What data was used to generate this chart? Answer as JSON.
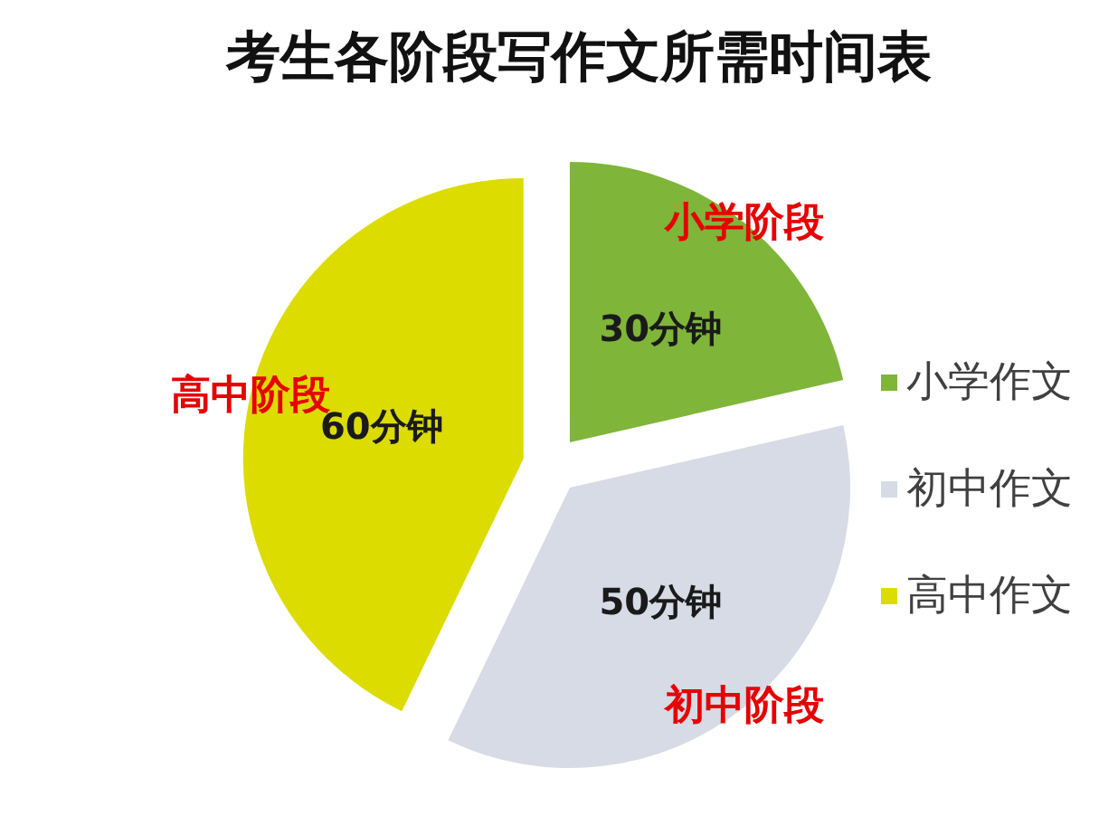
{
  "chart_data": {
    "type": "pie",
    "title": "考生各阶段写作文所需时间表",
    "categories": [
      "小学作文",
      "初中作文",
      "高中作文"
    ],
    "values": [
      30,
      50,
      60
    ],
    "colors": [
      "#7fb539",
      "#d6dbe5",
      "#dcdc00"
    ],
    "value_labels": [
      "30分钟",
      "50分钟",
      "60分钟"
    ],
    "annotations": [
      "小学阶段",
      "初中阶段",
      "高中阶段"
    ],
    "legend": "right"
  }
}
